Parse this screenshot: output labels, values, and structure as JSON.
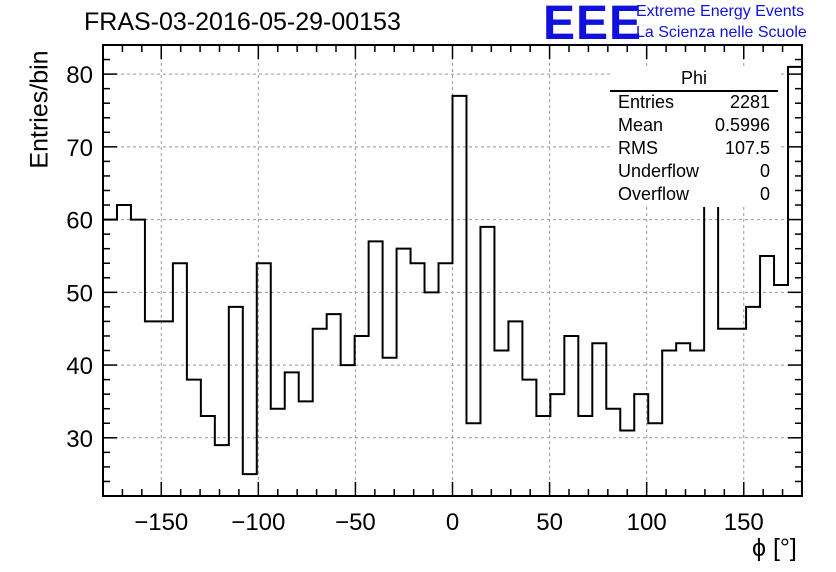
{
  "title": "FRAS-03-2016-05-29-00153",
  "logo": {
    "mark": "EEE",
    "line1": "Extreme Energy Events",
    "line2": "La Scienza nelle Scuole"
  },
  "stats": {
    "title": "Phi",
    "rows": [
      {
        "label": "Entries",
        "value": "2281"
      },
      {
        "label": "Mean",
        "value": "0.5996"
      },
      {
        "label": "RMS",
        "value": "107.5"
      },
      {
        "label": "Underflow",
        "value": "0"
      },
      {
        "label": "Overflow",
        "value": "0"
      }
    ]
  },
  "chart_data": {
    "type": "bar",
    "style": "step-histogram",
    "title": "FRAS-03-2016-05-29-00153",
    "xlabel": "ϕ [°]",
    "ylabel": "Entries/bin",
    "xlim": [
      -180,
      180
    ],
    "ylim": [
      22,
      84
    ],
    "bin_width": 7.2,
    "x_ticks": [
      -150,
      -100,
      -50,
      0,
      50,
      100,
      150
    ],
    "x_tick_labels": [
      "−150",
      "−100",
      "−50",
      "0",
      "50",
      "100",
      "150"
    ],
    "y_ticks": [
      30,
      40,
      50,
      60,
      70,
      80
    ],
    "values": [
      60,
      62,
      60,
      46,
      46,
      54,
      38,
      33,
      29,
      48,
      25,
      54,
      34,
      39,
      35,
      45,
      47,
      40,
      44,
      57,
      41,
      56,
      54,
      50,
      54,
      77,
      32,
      59,
      42,
      46,
      38,
      33,
      36,
      44,
      33,
      43,
      34,
      31,
      36,
      32,
      42,
      43,
      42,
      62,
      45,
      45,
      48,
      55,
      51,
      81
    ],
    "grid": true,
    "legend": "top-right stats box"
  }
}
